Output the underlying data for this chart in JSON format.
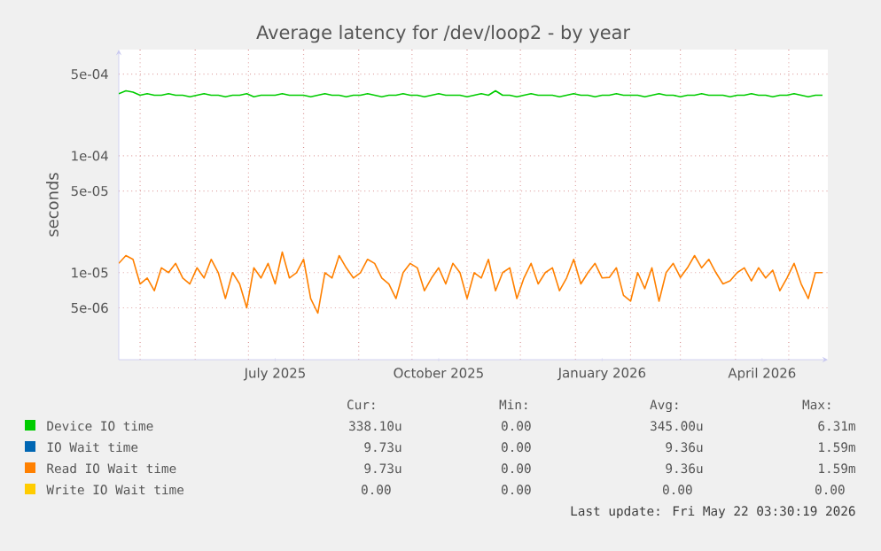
{
  "chart_data": {
    "type": "line",
    "title": "Average latency for /dev/loop2 - by year",
    "ylabel": "seconds",
    "log": "y",
    "grid": true,
    "legend": "bottom",
    "xlim": [
      "2025-04-19",
      "2026-05-23"
    ],
    "ylim": [
      1.8e-06,
      0.00081
    ],
    "xticks": [
      {
        "value": "2025-05-01",
        "label": null
      },
      {
        "value": "2025-06-01",
        "label": null
      },
      {
        "value": "2025-07-01",
        "label": null
      },
      {
        "value": "2025-08-01",
        "label": null
      },
      {
        "value": "2025-09-01",
        "label": null
      },
      {
        "value": "2025-10-01",
        "label": null
      },
      {
        "value": "2025-11-01",
        "label": null
      },
      {
        "value": "2025-12-01",
        "label": null
      },
      {
        "value": "2026-01-01",
        "label": null
      },
      {
        "value": "2026-02-01",
        "label": null
      },
      {
        "value": "2026-03-01",
        "label": null
      },
      {
        "value": "2026-04-01",
        "label": null
      },
      {
        "value": "2026-05-01",
        "label": null
      },
      {
        "value": "2025-07-16",
        "label": "July 2025"
      },
      {
        "value": "2025-10-16",
        "label": "October 2025"
      },
      {
        "value": "2026-01-16",
        "label": "January 2026"
      },
      {
        "value": "2026-04-16",
        "label": "April 2026"
      }
    ],
    "yticks": [
      {
        "value": 0.0005,
        "label": "5e-04"
      },
      {
        "value": 0.0001,
        "label": "1e-04"
      },
      {
        "value": 5e-05,
        "label": "5e-05"
      },
      {
        "value": 1e-05,
        "label": "1e-05"
      },
      {
        "value": 5e-06,
        "label": "5e-06"
      }
    ],
    "x": [
      "2025-04-19",
      "2025-04-23",
      "2025-04-27",
      "2025-05-01",
      "2025-05-05",
      "2025-05-09",
      "2025-05-13",
      "2025-05-17",
      "2025-05-21",
      "2025-05-25",
      "2025-05-29",
      "2025-06-02",
      "2025-06-06",
      "2025-06-10",
      "2025-06-14",
      "2025-06-18",
      "2025-06-22",
      "2025-06-26",
      "2025-06-30",
      "2025-07-04",
      "2025-07-08",
      "2025-07-12",
      "2025-07-16",
      "2025-07-20",
      "2025-07-24",
      "2025-07-28",
      "2025-08-01",
      "2025-08-05",
      "2025-08-09",
      "2025-08-13",
      "2025-08-17",
      "2025-08-21",
      "2025-08-25",
      "2025-08-29",
      "2025-09-02",
      "2025-09-06",
      "2025-09-10",
      "2025-09-14",
      "2025-09-18",
      "2025-09-22",
      "2025-09-26",
      "2025-09-30",
      "2025-10-04",
      "2025-10-08",
      "2025-10-12",
      "2025-10-16",
      "2025-10-20",
      "2025-10-24",
      "2025-10-28",
      "2025-11-01",
      "2025-11-05",
      "2025-11-09",
      "2025-11-13",
      "2025-11-17",
      "2025-11-21",
      "2025-11-25",
      "2025-11-29",
      "2025-12-03",
      "2025-12-07",
      "2025-12-11",
      "2025-12-15",
      "2025-12-19",
      "2025-12-23",
      "2025-12-27",
      "2025-12-31",
      "2026-01-04",
      "2026-01-08",
      "2026-01-12",
      "2026-01-16",
      "2026-01-20",
      "2026-01-24",
      "2026-01-28",
      "2026-02-01",
      "2026-02-05",
      "2026-02-09",
      "2026-02-13",
      "2026-02-17",
      "2026-02-21",
      "2026-02-25",
      "2026-03-01",
      "2026-03-05",
      "2026-03-09",
      "2026-03-13",
      "2026-03-17",
      "2026-03-21",
      "2026-03-25",
      "2026-03-29",
      "2026-04-02",
      "2026-04-06",
      "2026-04-10",
      "2026-04-14",
      "2026-04-18",
      "2026-04-22",
      "2026-04-26",
      "2026-04-30",
      "2026-05-04",
      "2026-05-08",
      "2026-05-12",
      "2026-05-16",
      "2026-05-20"
    ],
    "series": [
      {
        "name": "Device IO time",
        "color": "#00cc00",
        "values": [
          0.00034,
          0.00036,
          0.00035,
          0.00033,
          0.00034,
          0.00033,
          0.00033,
          0.00034,
          0.00033,
          0.00033,
          0.00032,
          0.00033,
          0.00034,
          0.00033,
          0.00033,
          0.00032,
          0.00033,
          0.00033,
          0.00034,
          0.00032,
          0.00033,
          0.00033,
          0.00033,
          0.00034,
          0.00033,
          0.00033,
          0.00033,
          0.00032,
          0.00033,
          0.00034,
          0.00033,
          0.00033,
          0.00032,
          0.00033,
          0.00033,
          0.00034,
          0.00033,
          0.00032,
          0.00033,
          0.00033,
          0.00034,
          0.00033,
          0.00033,
          0.00032,
          0.00033,
          0.00034,
          0.00033,
          0.00033,
          0.00033,
          0.00032,
          0.00033,
          0.00034,
          0.00033,
          0.00036,
          0.00033,
          0.00033,
          0.00032,
          0.00033,
          0.00034,
          0.00033,
          0.00033,
          0.00033,
          0.00032,
          0.00033,
          0.00034,
          0.00033,
          0.00033,
          0.00032,
          0.00033,
          0.00033,
          0.00034,
          0.00033,
          0.00033,
          0.00033,
          0.00032,
          0.00033,
          0.00034,
          0.00033,
          0.00033,
          0.00032,
          0.00033,
          0.00033,
          0.00034,
          0.00033,
          0.00033,
          0.00033,
          0.00032,
          0.00033,
          0.00033,
          0.00034,
          0.00033,
          0.00033,
          0.00032,
          0.00033,
          0.00033,
          0.00034,
          0.00033,
          0.00032,
          0.00033,
          0.00033
        ]
      },
      {
        "name": "IO Wait time",
        "color": "#0066b3",
        "values": [
          null,
          null,
          null,
          null,
          null,
          null,
          null,
          null,
          null,
          null,
          null,
          null,
          null,
          null,
          null,
          null,
          null,
          null,
          null,
          null,
          null,
          null,
          null,
          null,
          null,
          null,
          null,
          null,
          null,
          null,
          null,
          null,
          null,
          null,
          null,
          null,
          null,
          null,
          null,
          null,
          null,
          null,
          null,
          null,
          null,
          null,
          null,
          null,
          null,
          null,
          null,
          null,
          null,
          null,
          null,
          null,
          null,
          null,
          null,
          null,
          null,
          null,
          null,
          null,
          null,
          null,
          null,
          null,
          null,
          null,
          null,
          null,
          null,
          null,
          null,
          null,
          null,
          null,
          null,
          null,
          null,
          null,
          null,
          null,
          null,
          null,
          null,
          null,
          null,
          null,
          null,
          null,
          null,
          null,
          null,
          null,
          null,
          null,
          null,
          null
        ]
      },
      {
        "name": "Read IO Wait time",
        "color": "#ff8000",
        "values": [
          1.2e-05,
          1.4e-05,
          1.3e-05,
          8e-06,
          9e-06,
          7e-06,
          1.1e-05,
          1e-05,
          1.2e-05,
          9e-06,
          8e-06,
          1.1e-05,
          9e-06,
          1.3e-05,
          1e-05,
          6e-06,
          1e-05,
          8e-06,
          5e-06,
          1.1e-05,
          9e-06,
          1.2e-05,
          8e-06,
          1.5e-05,
          9e-06,
          1e-05,
          1.3e-05,
          6e-06,
          4.5e-06,
          1e-05,
          9e-06,
          1.4e-05,
          1.1e-05,
          9e-06,
          1e-05,
          1.3e-05,
          1.2e-05,
          9e-06,
          8e-06,
          6e-06,
          1e-05,
          1.2e-05,
          1.1e-05,
          7e-06,
          9e-06,
          1.1e-05,
          8e-06,
          1.2e-05,
          1e-05,
          6e-06,
          1e-05,
          9e-06,
          1.3e-05,
          7e-06,
          1e-05,
          1.1e-05,
          6e-06,
          9e-06,
          1.2e-05,
          8e-06,
          1e-05,
          1.1e-05,
          7e-06,
          9e-06,
          1.3e-05,
          8e-06,
          1e-05,
          1.2e-05,
          9e-06,
          9.1e-06,
          1.1e-05,
          6.4e-06,
          5.7e-06,
          1e-05,
          7.3e-06,
          1.1e-05,
          5.7e-06,
          1e-05,
          1.2e-05,
          9.1e-06,
          1.1e-05,
          1.4e-05,
          1.1e-05,
          1.3e-05,
          1e-05,
          8e-06,
          8.5e-06,
          1e-05,
          1.1e-05,
          8.5e-06,
          1.1e-05,
          9e-06,
          1.05e-05,
          7e-06,
          9e-06,
          1.2e-05,
          8e-06,
          6e-06,
          1e-05,
          1e-05
        ]
      },
      {
        "name": "Write IO Wait time",
        "color": "#ffcc00",
        "values": [
          null,
          null,
          null,
          null,
          null,
          null,
          null,
          null,
          null,
          null,
          null,
          null,
          null,
          null,
          null,
          null,
          null,
          null,
          null,
          null,
          null,
          null,
          null,
          null,
          null,
          null,
          null,
          null,
          null,
          null,
          null,
          null,
          null,
          null,
          null,
          null,
          null,
          null,
          null,
          null,
          null,
          null,
          null,
          null,
          null,
          null,
          null,
          null,
          null,
          null,
          null,
          null,
          null,
          null,
          null,
          null,
          null,
          null,
          null,
          null,
          null,
          null,
          null,
          null,
          null,
          null,
          null,
          null,
          null,
          null,
          null,
          null,
          null,
          null,
          null,
          null,
          null,
          null,
          null,
          null,
          null,
          null,
          null,
          null,
          null,
          null,
          null,
          null,
          null,
          null,
          null,
          null,
          null,
          null,
          null,
          null,
          null,
          null,
          null,
          null
        ]
      }
    ],
    "annotations": [
      "Cur:",
      "Min:",
      "Avg:",
      "Max:",
      "338.10u",
      "0.00",
      "345.00u",
      "6.31m",
      "9.73u",
      "0.00",
      "9.36u",
      "1.59m",
      "9.73u",
      "0.00",
      "9.36u",
      "1.59m",
      "0.00",
      "0.00",
      "0.00",
      "0.00",
      "Last update: Fri May 22 03:30:19 2026"
    ]
  }
}
